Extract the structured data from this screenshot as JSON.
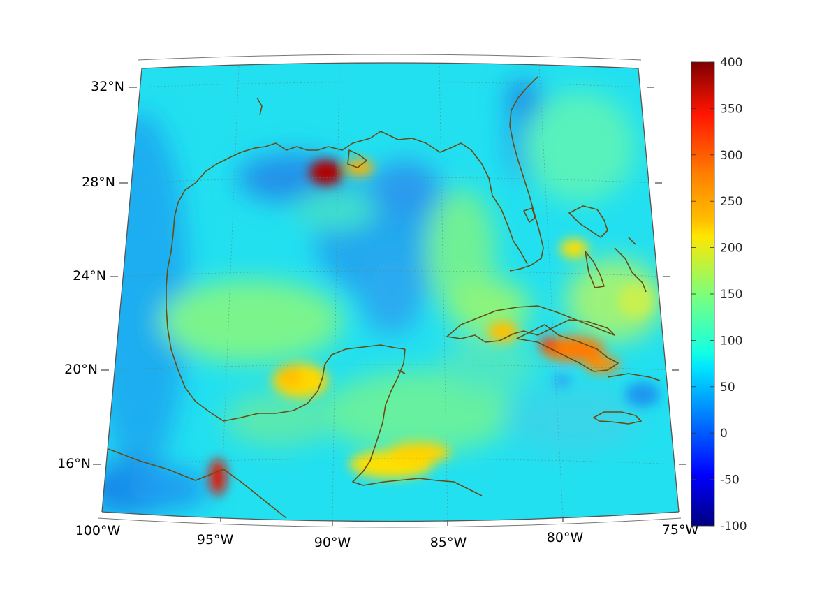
{
  "map": {
    "lat_labels": [
      "32°N",
      "28°N",
      "24°N",
      "20°N",
      "16°N"
    ],
    "lon_labels": [
      "100°W",
      "95°W",
      "90°W",
      "85°W",
      "80°W",
      "75°W"
    ],
    "grid_lines": true,
    "coastline_color": "#6b4a12",
    "land_color": "#ffffff"
  },
  "colorbar": {
    "placement": "right",
    "colormap": "jet",
    "ticks": [
      "400",
      "350",
      "300",
      "250",
      "200",
      "150",
      "100",
      "50",
      "0",
      "-50",
      "-100"
    ],
    "range": [
      -100,
      400
    ]
  }
}
